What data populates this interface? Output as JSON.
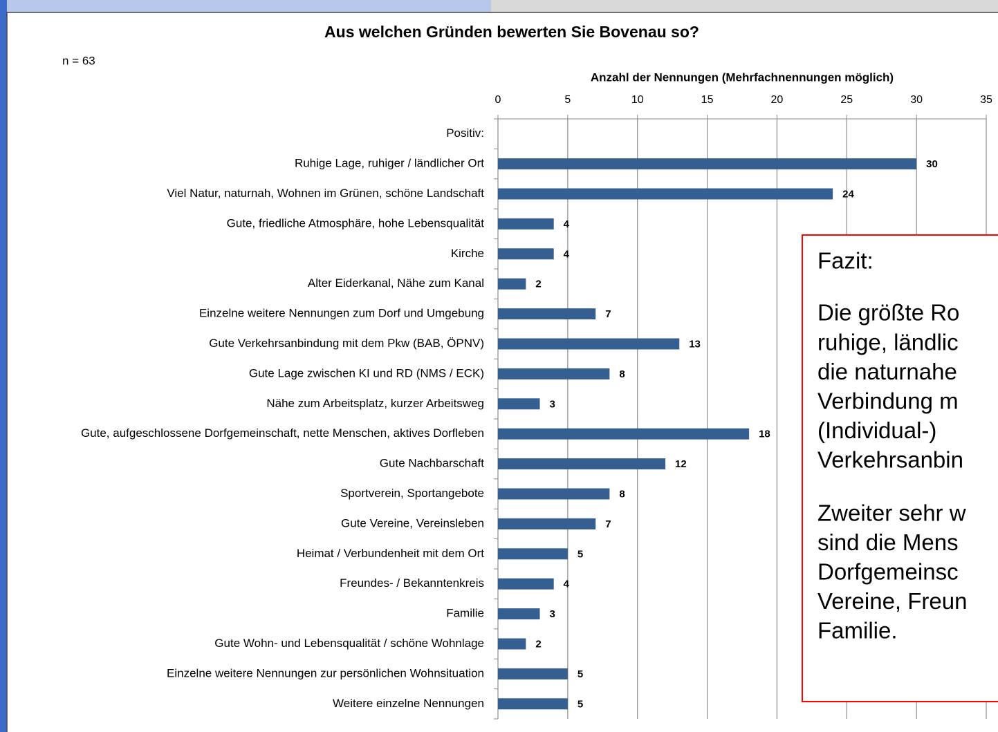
{
  "chart_data": {
    "type": "barh",
    "title": "Aus welchen Gründen bewerten Sie Bovenau so?",
    "subtitle": "n = 63",
    "x_label": "Anzahl der Nennungen (Mehrfachnennungen möglich)",
    "categories": [
      "Positiv:",
      "Ruhige Lage, ruhiger / ländlicher Ort",
      "Viel Natur, naturnah, Wohnen im Grünen, schöne Landschaft",
      "Gute, friedliche Atmosphäre, hohe Lebensqualität",
      "Kirche",
      "Alter Eiderkanal, Nähe zum Kanal",
      "Einzelne weitere Nennungen zum Dorf und Umgebung",
      "Gute Verkehrsanbindung mit dem Pkw (BAB, ÖPNV)",
      "Gute Lage zwischen KI und RD (NMS / ECK)",
      "Nähe zum Arbeitsplatz, kurzer Arbeitsweg",
      "Gute, aufgeschlossene Dorfgemeinschaft, nette Menschen, aktives Dorfleben",
      "Gute Nachbarschaft",
      "Sportverein, Sportangebote",
      "Gute Vereine, Vereinsleben",
      "Heimat / Verbundenheit mit dem Ort",
      "Freundes- / Bekanntenkreis",
      "Familie",
      "Gute Wohn- und Lebensqualität / schöne Wohnlage",
      "Einzelne weitere Nennungen zur persönlichen Wohnsituation",
      "Weitere einzelne Nennungen"
    ],
    "values": [
      null,
      30,
      24,
      4,
      4,
      2,
      7,
      13,
      8,
      3,
      18,
      12,
      8,
      7,
      5,
      4,
      3,
      2,
      5,
      5
    ],
    "color": "#355f91",
    "xlim": [
      0,
      35
    ],
    "xticks": [
      0,
      5,
      10,
      15,
      20,
      25,
      30,
      35
    ],
    "grid": true,
    "annotation": {
      "title": "Fazit:",
      "paragraphs": [
        [
          "Die größte Ro",
          "ruhige, ländlic",
          "die naturnahe",
          "Verbindung m",
          "(Individual-)",
          "Verkehrsanbin"
        ],
        [
          "Zweiter sehr w",
          "sind die Mens",
          "Dorfgemeinsc",
          "Vereine, Freun",
          "Familie."
        ]
      ],
      "color": "#ff0000"
    }
  }
}
